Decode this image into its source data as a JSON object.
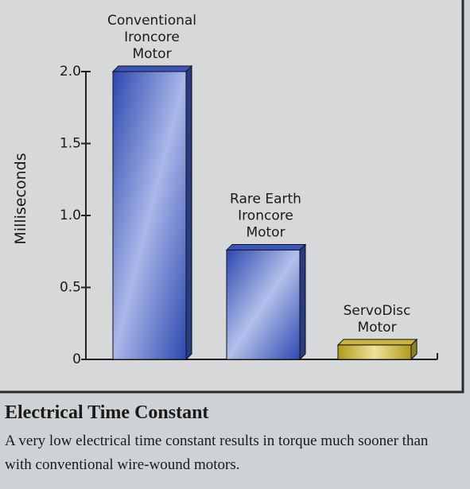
{
  "chart_data": {
    "type": "bar",
    "title": "Electrical Time Constant",
    "subtitle": "A very low electrical time constant results in torque much sooner than with conventional wire-wound motors.",
    "y_label": "Milliseconds",
    "categories": [
      "Conventional\nIroncore\nMotor",
      "Rare Earth\nIroncore\nMotor",
      "ServoDisc\nMotor"
    ],
    "values": [
      2.0,
      0.76,
      0.1
    ],
    "colors": [
      "#3a55b8",
      "#3a55b8",
      "#c9b53a"
    ],
    "ylim": [
      0,
      2.0
    ],
    "yticks": [
      0,
      {
        "value": 0.5,
        "label": "0.5"
      },
      {
        "value": 1,
        "label": "1.0"
      },
      {
        "value": 1.5,
        "label": "1.5"
      },
      {
        "value": 2,
        "label": "2.0"
      }
    ]
  }
}
